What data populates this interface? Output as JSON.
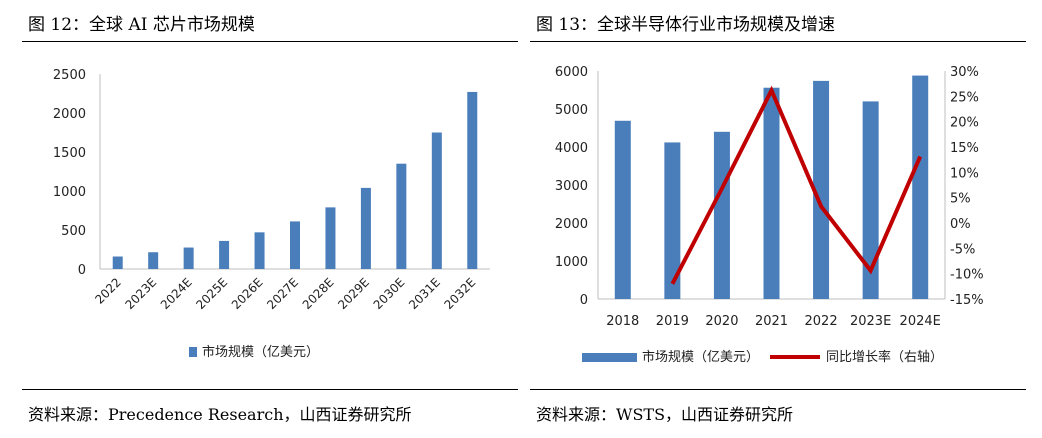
{
  "figures": [
    {
      "title": "图 12：全球 AI 芯片市场规模",
      "source": "资料来源：Precedence Research，山西证券研究所"
    },
    {
      "title": "图 13：全球半导体行业市场规模及增速",
      "source": "资料来源：WSTS，山西证券研究所"
    }
  ],
  "chart_data": [
    {
      "type": "bar",
      "categories": [
        "2022",
        "2023E",
        "2024E",
        "2025E",
        "2026E",
        "2027E",
        "2028E",
        "2029E",
        "2030E",
        "2031E",
        "2032E"
      ],
      "series": [
        {
          "name": "市场规模（亿美元）",
          "values": [
            160,
            215,
            275,
            360,
            470,
            610,
            790,
            1040,
            1350,
            1750,
            2270
          ],
          "color": "#4a7ebb"
        }
      ],
      "ylim": [
        0,
        2500
      ],
      "yticks": [
        0,
        500,
        1000,
        1500,
        2000,
        2500
      ],
      "grid": false,
      "legend": "bottom"
    },
    {
      "type": "bar+line",
      "categories": [
        "2018",
        "2019",
        "2020",
        "2021",
        "2022",
        "2023E",
        "2024E"
      ],
      "series": [
        {
          "name": "市场规模（亿美元）",
          "type": "bar",
          "axis": "left",
          "values": [
            4690,
            4120,
            4400,
            5560,
            5740,
            5200,
            5880
          ],
          "color": "#4a7ebb"
        },
        {
          "name": "同比增长率（右轴）",
          "type": "line",
          "axis": "right",
          "values": [
            null,
            -12,
            6.8,
            26.2,
            3.3,
            -9.4,
            13.1
          ],
          "color": "#c00000"
        }
      ],
      "ylim": [
        0,
        6000
      ],
      "yticks": [
        0,
        1000,
        2000,
        3000,
        4000,
        5000,
        6000
      ],
      "y2lim": [
        -15,
        30
      ],
      "y2ticks": [
        "-15%",
        "-10%",
        "-5%",
        "0%",
        "5%",
        "10%",
        "15%",
        "20%",
        "25%",
        "30%"
      ],
      "grid": false,
      "legend": "bottom"
    }
  ]
}
